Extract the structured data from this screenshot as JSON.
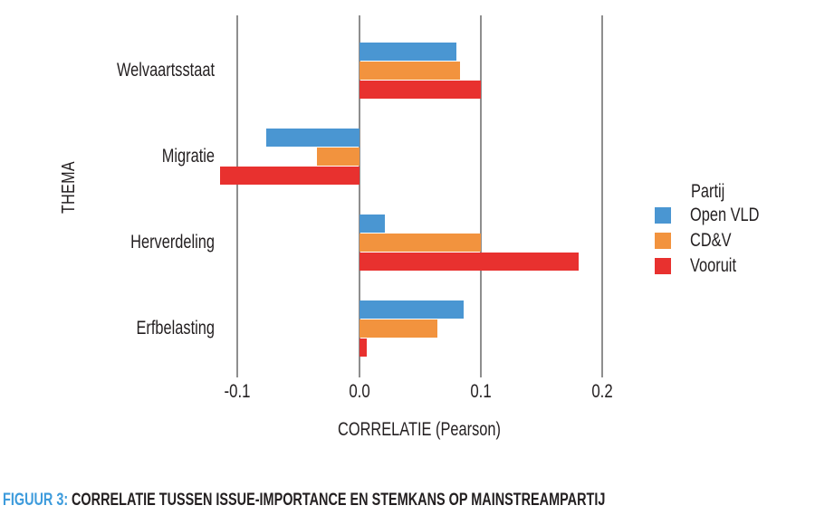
{
  "figure": {
    "caption_label": "FIGUUR 3:",
    "caption_text": "CORRELATIE TUSSEN ISSUE-IMPORTANCE EN STEMKANS OP MAINSTREAMPARTIJ"
  },
  "chart_data": {
    "type": "bar",
    "orientation": "horizontal",
    "title": "",
    "xlabel": "CORRELATIE (Pearson)",
    "ylabel": "THEMA",
    "categories": [
      "Welvaartsstaat",
      "Migratie",
      "Herverdeling",
      "Erfbelasting"
    ],
    "series": [
      {
        "name": "Open VLD",
        "color": "#4a96d2",
        "values": [
          0.08,
          -0.077,
          0.021,
          0.086
        ]
      },
      {
        "name": "CD&V",
        "color": "#f2933e",
        "values": [
          0.083,
          -0.035,
          0.1,
          0.064
        ]
      },
      {
        "name": "Vooruit",
        "color": "#e8312f",
        "values": [
          0.1,
          -0.115,
          0.18,
          0.006
        ]
      }
    ],
    "xticks": [
      -0.1,
      0.0,
      0.1,
      0.2
    ],
    "xtick_labels": [
      "-0.1",
      "0.0",
      "0.1",
      "0.2"
    ],
    "xlim": [
      -0.12,
      0.21
    ],
    "grid": "vertical-gridlines-only",
    "legend": {
      "title": "Partij",
      "position": "right"
    }
  },
  "colors": {
    "gridline": "#8e8e8e",
    "text": "#231f20",
    "caption_accent": "#3d9bdc"
  }
}
